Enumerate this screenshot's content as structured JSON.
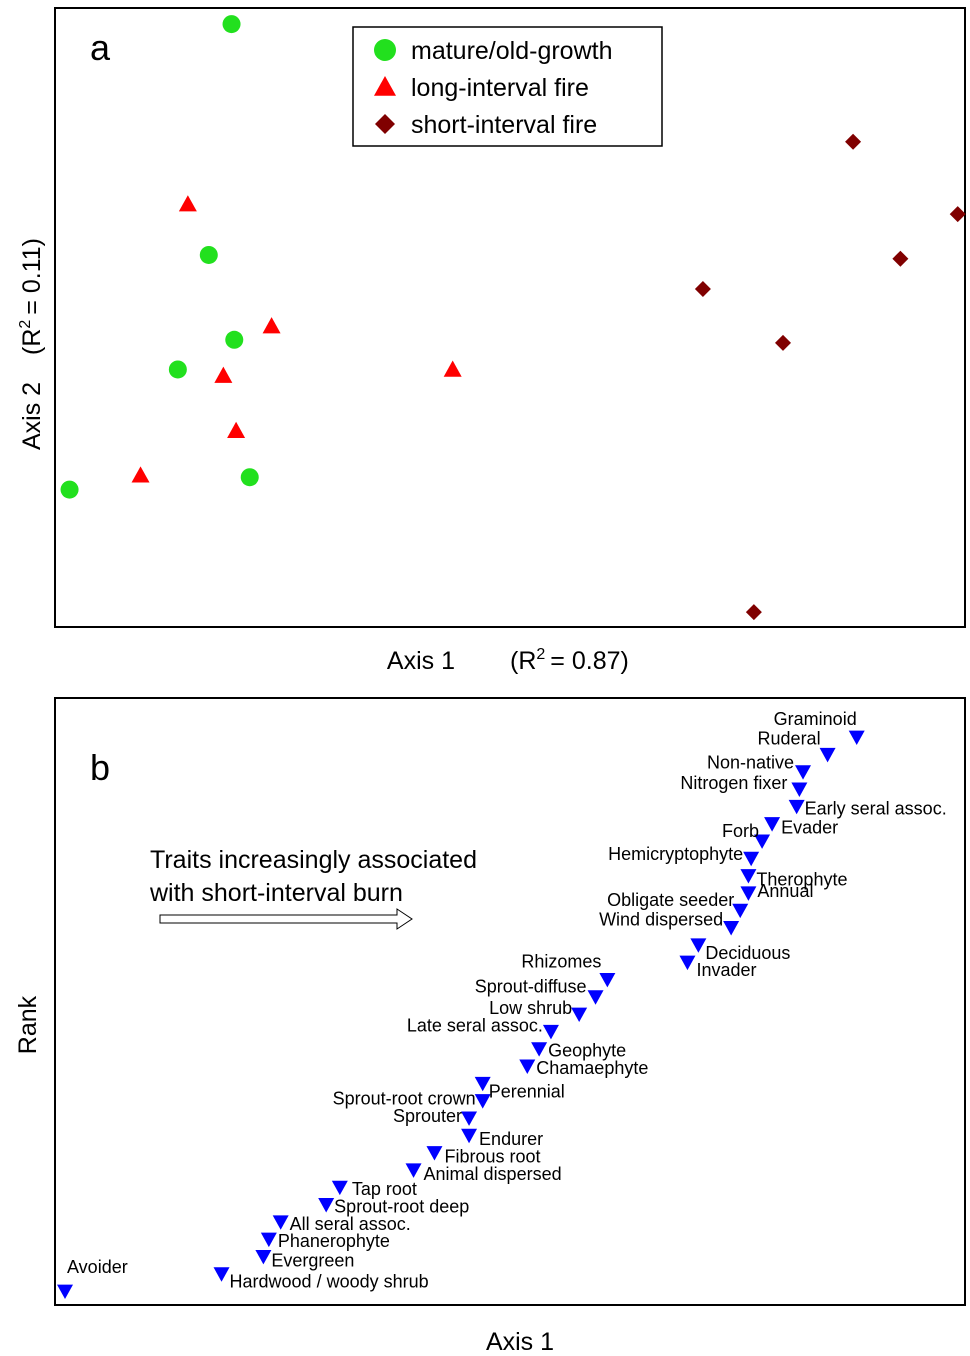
{
  "chart_data": [
    {
      "panel": "a",
      "type": "scatter",
      "xlabel": "Axis 1",
      "xlabel_r2": "(R",
      "xlabel_r2_value": "= 0.87)",
      "ylabel": "Axis 2",
      "ylabel_r2": "(R",
      "ylabel_r2_value": "= 0.11)",
      "superscript": "2",
      "xlim": [
        0,
        100
      ],
      "ylim": [
        0,
        100
      ],
      "grid": false,
      "ticks": false,
      "legend_position": "top-center",
      "series": [
        {
          "name": "mature/old-growth",
          "marker": "circle",
          "color": "#22e01e",
          "points": [
            [
              19.4,
              97.4
            ],
            [
              16.9,
              60.1
            ],
            [
              19.7,
              46.4
            ],
            [
              13.5,
              41.6
            ],
            [
              1.6,
              22.2
            ],
            [
              21.4,
              24.2
            ]
          ]
        },
        {
          "name": "long-interval fire",
          "marker": "triangle-up",
          "color": "#ff0000",
          "points": [
            [
              14.6,
              68.3
            ],
            [
              23.8,
              48.6
            ],
            [
              18.5,
              40.6
            ],
            [
              43.7,
              41.6
            ],
            [
              19.9,
              31.7
            ],
            [
              9.4,
              24.5
            ]
          ]
        },
        {
          "name": "short-interval fire",
          "marker": "diamond",
          "color": "#800000",
          "points": [
            [
              87.7,
              78.4
            ],
            [
              99.2,
              66.7
            ],
            [
              92.9,
              59.5
            ],
            [
              71.2,
              54.6
            ],
            [
              80.0,
              45.9
            ],
            [
              76.8,
              2.4
            ]
          ]
        }
      ]
    },
    {
      "panel": "b",
      "type": "scatter",
      "xlabel": "Axis 1",
      "ylabel": "Rank",
      "marker": "triangle-down",
      "color": "#0000ff",
      "annotation": [
        "Traits increasingly associated",
        "with short-interval burn"
      ],
      "xlim": [
        0,
        100
      ],
      "ylim": [
        0,
        40
      ],
      "points": [
        {
          "rank": 1,
          "x": 1.1,
          "label": "Avoider"
        },
        {
          "rank": 2,
          "x": 18.3,
          "label": "Hardwood / woody shrub"
        },
        {
          "rank": 3,
          "x": 22.9,
          "label": "Evergreen"
        },
        {
          "rank": 4,
          "x": 23.5,
          "label": "Phanerophyte"
        },
        {
          "rank": 5,
          "x": 24.8,
          "label": "All seral assoc."
        },
        {
          "rank": 6,
          "x": 29.8,
          "label": "Sprout-root deep"
        },
        {
          "rank": 7,
          "x": 31.3,
          "label": "Tap root"
        },
        {
          "rank": 8,
          "x": 39.4,
          "label": "Animal dispersed"
        },
        {
          "rank": 9,
          "x": 41.7,
          "label": "Fibrous root"
        },
        {
          "rank": 10,
          "x": 45.5,
          "label": "Endurer"
        },
        {
          "rank": 11,
          "x": 45.5,
          "label": "Sprouter"
        },
        {
          "rank": 12,
          "x": 47.0,
          "label": "Sprout-root crown"
        },
        {
          "rank": 13,
          "x": 47.0,
          "label": "Perennial"
        },
        {
          "rank": 14,
          "x": 51.9,
          "label": "Chamaephyte"
        },
        {
          "rank": 15,
          "x": 53.2,
          "label": "Geophyte"
        },
        {
          "rank": 16,
          "x": 54.5,
          "label": "Late seral assoc."
        },
        {
          "rank": 17,
          "x": 57.6,
          "label": "Low shrub"
        },
        {
          "rank": 18,
          "x": 59.4,
          "label": "Sprout-diffuse"
        },
        {
          "rank": 19,
          "x": 60.7,
          "label": "Rhizomes"
        },
        {
          "rank": 20,
          "x": 69.5,
          "label": "Invader"
        },
        {
          "rank": 21,
          "x": 70.7,
          "label": "Deciduous"
        },
        {
          "rank": 22,
          "x": 74.3,
          "label": "Wind dispersed"
        },
        {
          "rank": 23,
          "x": 75.3,
          "label": "Obligate seeder"
        },
        {
          "rank": 24,
          "x": 76.2,
          "label": "Annual"
        },
        {
          "rank": 25,
          "x": 76.2,
          "label": "Therophyte"
        },
        {
          "rank": 26,
          "x": 76.5,
          "label": "Hemicryptophyte"
        },
        {
          "rank": 27,
          "x": 77.7,
          "label": "Forb"
        },
        {
          "rank": 28,
          "x": 78.8,
          "label": "Evader"
        },
        {
          "rank": 29,
          "x": 81.5,
          "label": "Early seral assoc."
        },
        {
          "rank": 30,
          "x": 81.8,
          "label": "Nitrogen fixer"
        },
        {
          "rank": 31,
          "x": 82.2,
          "label": "Non-native"
        },
        {
          "rank": 32,
          "x": 84.9,
          "label": "Ruderal"
        },
        {
          "rank": 33,
          "x": 88.1,
          "label": "Graminoid"
        }
      ]
    }
  ]
}
